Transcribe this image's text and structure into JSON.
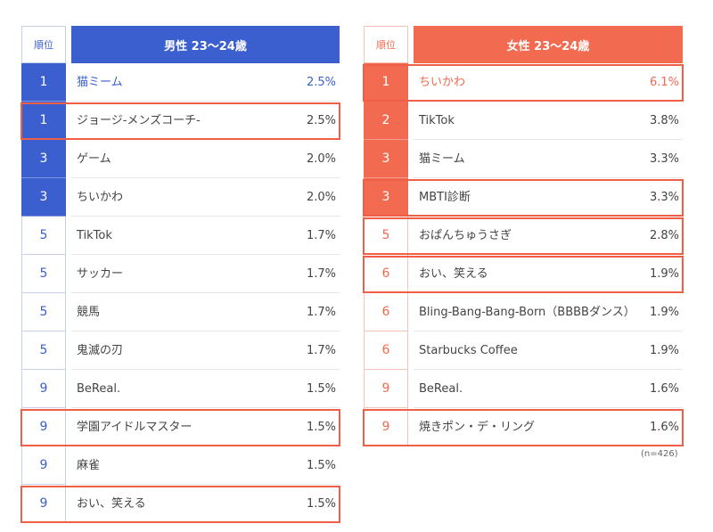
{
  "colors": {
    "male": "#3b5fce",
    "female": "#f26a50",
    "highlight": "#ef5f47"
  },
  "male": {
    "rank_header": "順位",
    "title": "男性 23〜24歳",
    "rows": [
      {
        "rank": "1",
        "name": "猫ミーム",
        "pct": "2.5%",
        "filled": true,
        "accent": true,
        "highlight": false
      },
      {
        "rank": "1",
        "name": "ジョージ-メンズコーチ-",
        "pct": "2.5%",
        "filled": true,
        "accent": false,
        "highlight": true
      },
      {
        "rank": "3",
        "name": "ゲーム",
        "pct": "2.0%",
        "filled": true,
        "accent": false,
        "highlight": false
      },
      {
        "rank": "3",
        "name": "ちいかわ",
        "pct": "2.0%",
        "filled": true,
        "accent": false,
        "highlight": false
      },
      {
        "rank": "5",
        "name": "TikTok",
        "pct": "1.7%",
        "filled": false,
        "accent": false,
        "highlight": false
      },
      {
        "rank": "5",
        "name": "サッカー",
        "pct": "1.7%",
        "filled": false,
        "accent": false,
        "highlight": false
      },
      {
        "rank": "5",
        "name": "競馬",
        "pct": "1.7%",
        "filled": false,
        "accent": false,
        "highlight": false
      },
      {
        "rank": "5",
        "name": "鬼滅の刃",
        "pct": "1.7%",
        "filled": false,
        "accent": false,
        "highlight": false
      },
      {
        "rank": "9",
        "name": "BeReal.",
        "pct": "1.5%",
        "filled": false,
        "accent": false,
        "highlight": false
      },
      {
        "rank": "9",
        "name": "学園アイドルマスター",
        "pct": "1.5%",
        "filled": false,
        "accent": false,
        "highlight": true
      },
      {
        "rank": "9",
        "name": "麻雀",
        "pct": "1.5%",
        "filled": false,
        "accent": false,
        "highlight": false
      },
      {
        "rank": "9",
        "name": "おい、笑える",
        "pct": "1.5%",
        "filled": false,
        "accent": false,
        "highlight": true
      }
    ]
  },
  "female": {
    "rank_header": "順位",
    "title": "女性 23〜24歳",
    "rows": [
      {
        "rank": "1",
        "name": "ちいかわ",
        "pct": "6.1%",
        "filled": true,
        "accent": true,
        "highlight": true
      },
      {
        "rank": "2",
        "name": "TikTok",
        "pct": "3.8%",
        "filled": true,
        "accent": false,
        "highlight": false
      },
      {
        "rank": "3",
        "name": "猫ミーム",
        "pct": "3.3%",
        "filled": true,
        "accent": false,
        "highlight": false
      },
      {
        "rank": "3",
        "name": "MBTI診断",
        "pct": "3.3%",
        "filled": true,
        "accent": false,
        "highlight": true
      },
      {
        "rank": "5",
        "name": "おぱんちゅうさぎ",
        "pct": "2.8%",
        "filled": false,
        "accent": false,
        "highlight": true
      },
      {
        "rank": "6",
        "name": "おい、笑える",
        "pct": "1.9%",
        "filled": false,
        "accent": false,
        "highlight": true
      },
      {
        "rank": "6",
        "name": "Bling-Bang-Bang-Born（BBBBダンス）",
        "pct": "1.9%",
        "filled": false,
        "accent": false,
        "highlight": false
      },
      {
        "rank": "6",
        "name": "Starbucks Coffee",
        "pct": "1.9%",
        "filled": false,
        "accent": false,
        "highlight": false
      },
      {
        "rank": "9",
        "name": "BeReal.",
        "pct": "1.6%",
        "filled": false,
        "accent": false,
        "highlight": false
      },
      {
        "rank": "9",
        "name": "焼きポン・デ・リング",
        "pct": "1.6%",
        "filled": false,
        "accent": false,
        "highlight": true
      }
    ],
    "note": "(n=426)"
  }
}
